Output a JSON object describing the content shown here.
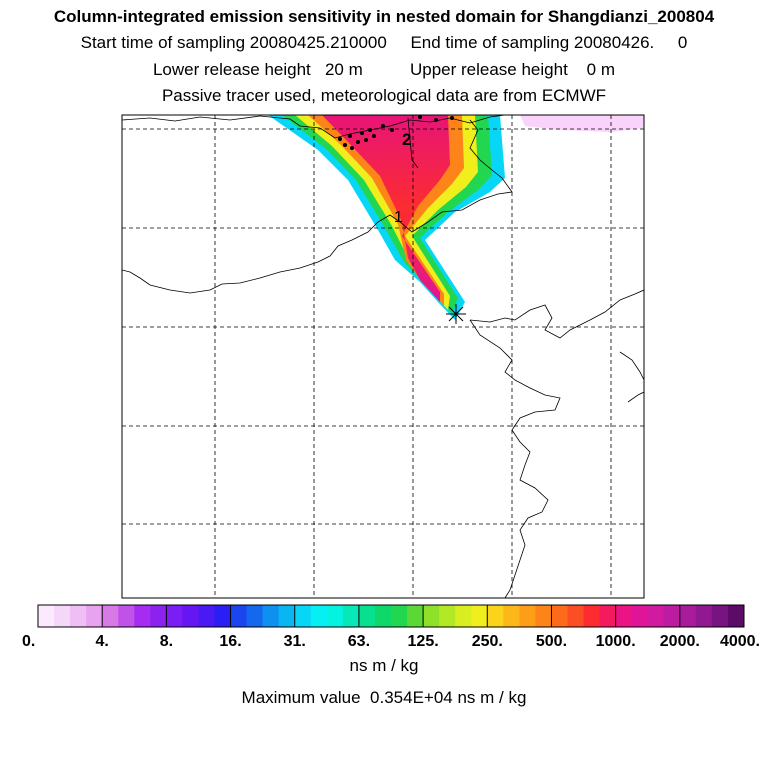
{
  "header": {
    "title": "Column-integrated emission sensitivity in nested domain for Shangdianzi_200804",
    "sampling_line": "Start time of sampling 20080425.210000     End time of sampling 20080426.     0",
    "release_line": "Lower release height   20 m          Upper release height    0 m",
    "tracer_line": "Passive tracer used, meteorological data are from ECMWF"
  },
  "colors": {
    "bins": [
      "#fbeafd",
      "#f5d7fa",
      "#efbef5",
      "#e8a2f0",
      "#d67ae6",
      "#c052e8",
      "#a52cf0",
      "#8c22ee",
      "#7a1ef4",
      "#6616f2",
      "#4a1af5",
      "#2a1ef5",
      "#1a46f0",
      "#1468ee",
      "#0e90f0",
      "#0ab6f2",
      "#08d6f6",
      "#06f0f4",
      "#04f2e0",
      "#06e8b8",
      "#08e090",
      "#0ed86a",
      "#22d650",
      "#5cd836",
      "#8ee02a",
      "#b2e826",
      "#d8ee20",
      "#f0ee1c",
      "#fad41a",
      "#fcb818",
      "#fc9e18",
      "#fc8418",
      "#fc6a1c",
      "#fc4e24",
      "#fc2c30",
      "#f41a60",
      "#ec1484",
      "#e01498",
      "#d01aa0",
      "#bc1ca2",
      "#a81c9c",
      "#901890",
      "#781480",
      "#5c0c66"
    ]
  },
  "chart_data": {
    "type": "heatmap",
    "title": "Column-integrated emission sensitivity in nested domain for Shangdianzi_200804",
    "colorbar": {
      "tick_labels": [
        "0.",
        "4.",
        "8.",
        "16.",
        "31.",
        "63.",
        "125.",
        "250.",
        "500.",
        "1000.",
        "2000.",
        "4000."
      ],
      "tick_values": [
        0,
        4,
        8,
        16,
        31,
        63,
        125,
        250,
        500,
        1000,
        2000,
        4000
      ],
      "units": "ns m / kg"
    },
    "max_value_label": "Maximum value  0.354E+04 ns m / kg",
    "max_value": 3540,
    "plume_labels": [
      "1",
      "2"
    ],
    "release_site": "Shangdianzi",
    "grid": true
  }
}
